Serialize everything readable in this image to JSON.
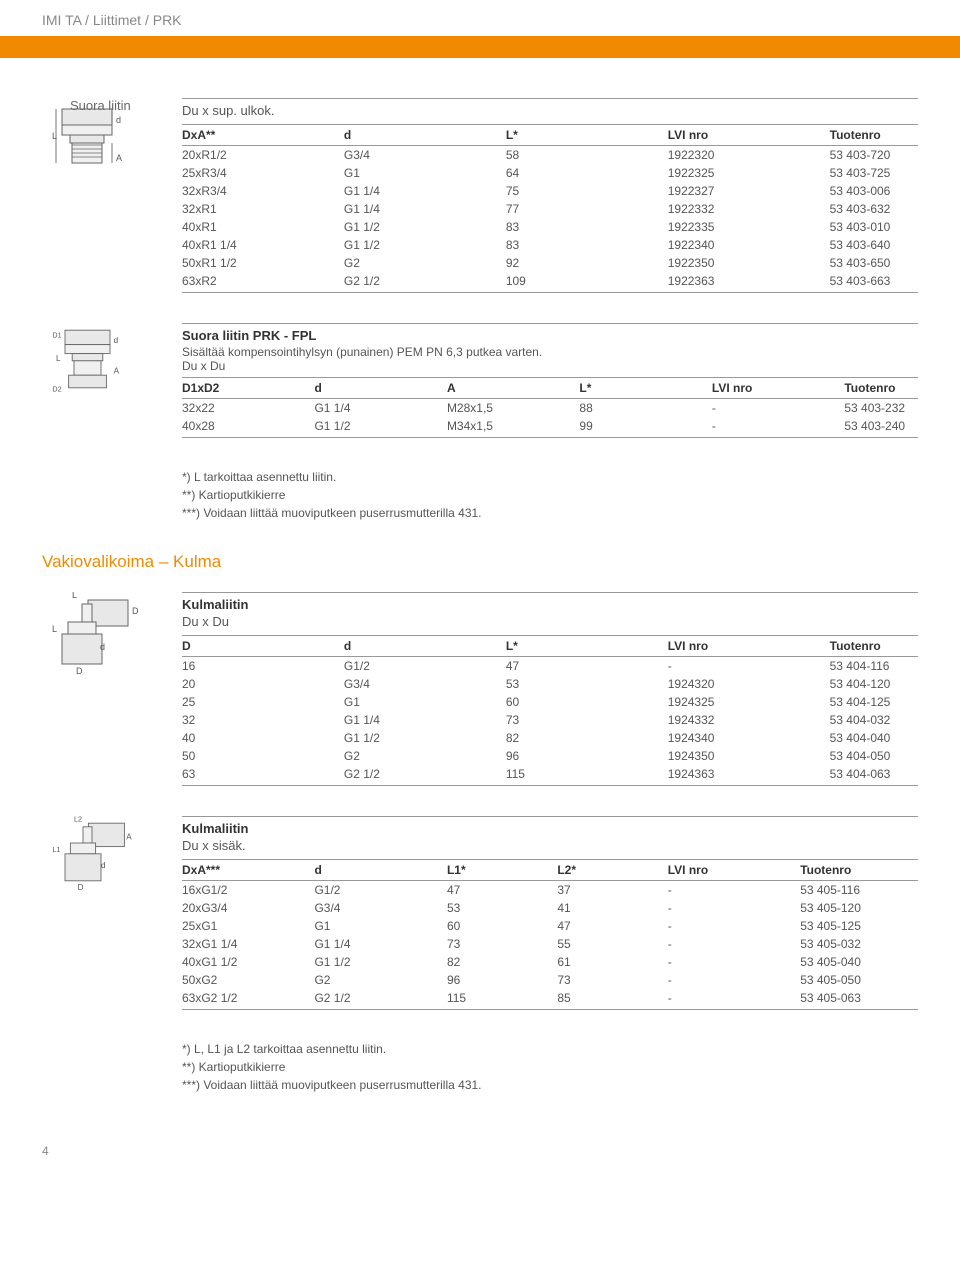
{
  "breadcrumb": "IMI TA / Liittimet / PRK",
  "section1": {
    "overlay": "Suora liitin",
    "subtitle": "Du x sup. ulkok.",
    "table": {
      "columns": [
        "DxA**",
        "d",
        "L*",
        "LVI nro",
        "Tuotenro"
      ],
      "rows": [
        [
          "20xR1/2",
          "G3/4",
          "58",
          "1922320",
          "53 403-720"
        ],
        [
          "25xR3/4",
          "G1",
          "64",
          "1922325",
          "53 403-725"
        ],
        [
          "32xR3/4",
          "G1 1/4",
          "75",
          "1922327",
          "53 403-006"
        ],
        [
          "32xR1",
          "G1 1/4",
          "77",
          "1922332",
          "53 403-632"
        ],
        [
          "40xR1",
          "G1 1/2",
          "83",
          "1922335",
          "53 403-010"
        ],
        [
          "40xR1 1/4",
          "G1 1/2",
          "83",
          "1922340",
          "53 403-640"
        ],
        [
          "50xR1 1/2",
          "G2",
          "92",
          "1922350",
          "53 403-650"
        ],
        [
          "63xR2",
          "G2 1/2",
          "109",
          "1922363",
          "53 403-663"
        ]
      ],
      "col_widths": [
        "22%",
        "22%",
        "22%",
        "22%",
        "12%"
      ]
    }
  },
  "section2": {
    "title": "Suora liitin PRK - FPL",
    "desc1": "Sisältää kompensointihylsyn (punainen) PEM PN 6,3 putkea varten.",
    "desc2": "Du x Du",
    "table": {
      "columns": [
        "D1xD2",
        "d",
        "A",
        "L*",
        "LVI nro",
        "Tuotenro"
      ],
      "rows": [
        [
          "32x22",
          "G1 1/4",
          "M28x1,5",
          "88",
          "-",
          "53 403-232"
        ],
        [
          "40x28",
          "G1 1/2",
          "M34x1,5",
          "99",
          "-",
          "53 403-240"
        ]
      ],
      "col_widths": [
        "18%",
        "18%",
        "18%",
        "18%",
        "18%",
        "10%"
      ]
    }
  },
  "notes1": {
    "n1": "*) L tarkoittaa asennettu liitin.",
    "n2": "**) Kartioputkikierre",
    "n3": "***) Voidaan liittää muoviputkeen puserrusmutterilla 431."
  },
  "section_heading": "Vakiovalikoima – Kulma",
  "section3": {
    "title": "Kulmaliitin",
    "subtitle": "Du x Du",
    "table": {
      "columns": [
        "D",
        "d",
        "L*",
        "LVI nro",
        "Tuotenro"
      ],
      "rows": [
        [
          "16",
          "G1/2",
          "47",
          "-",
          "53 404-116"
        ],
        [
          "20",
          "G3/4",
          "53",
          "1924320",
          "53 404-120"
        ],
        [
          "25",
          "G1",
          "60",
          "1924325",
          "53 404-125"
        ],
        [
          "32",
          "G1 1/4",
          "73",
          "1924332",
          "53 404-032"
        ],
        [
          "40",
          "G1 1/2",
          "82",
          "1924340",
          "53 404-040"
        ],
        [
          "50",
          "G2",
          "96",
          "1924350",
          "53 404-050"
        ],
        [
          "63",
          "G2 1/2",
          "115",
          "1924363",
          "53 404-063"
        ]
      ],
      "col_widths": [
        "22%",
        "22%",
        "22%",
        "22%",
        "12%"
      ]
    }
  },
  "section4": {
    "title": "Kulmaliitin",
    "subtitle": "Du x sisäk.",
    "table": {
      "columns": [
        "DxA***",
        "d",
        "L1*",
        "L2*",
        "LVI nro",
        "Tuotenro"
      ],
      "rows": [
        [
          "16xG1/2",
          "G1/2",
          "47",
          "37",
          "-",
          "53 405-116"
        ],
        [
          "20xG3/4",
          "G3/4",
          "53",
          "41",
          "-",
          "53 405-120"
        ],
        [
          "25xG1",
          "G1",
          "60",
          "47",
          "-",
          "53 405-125"
        ],
        [
          "32xG1 1/4",
          "G1 1/4",
          "73",
          "55",
          "-",
          "53 405-032"
        ],
        [
          "40xG1 1/2",
          "G1 1/2",
          "82",
          "61",
          "-",
          "53 405-040"
        ],
        [
          "50xG2",
          "G2",
          "96",
          "73",
          "-",
          "53 405-050"
        ],
        [
          "63xG2 1/2",
          "G2 1/2",
          "115",
          "85",
          "-",
          "53 405-063"
        ]
      ],
      "col_widths": [
        "18%",
        "18%",
        "15%",
        "15%",
        "18%",
        "16%"
      ]
    }
  },
  "notes2": {
    "n1": "*) L, L1 ja L2 tarkoittaa asennettu liitin.",
    "n2": "**) Kartioputkikierre",
    "n3": "***) Voidaan liittää muoviputkeen puserrusmutterilla 431."
  },
  "page_num": "4",
  "colors": {
    "orange": "#f18a00",
    "text": "#555555",
    "heading": "#333333",
    "border": "#999999"
  }
}
